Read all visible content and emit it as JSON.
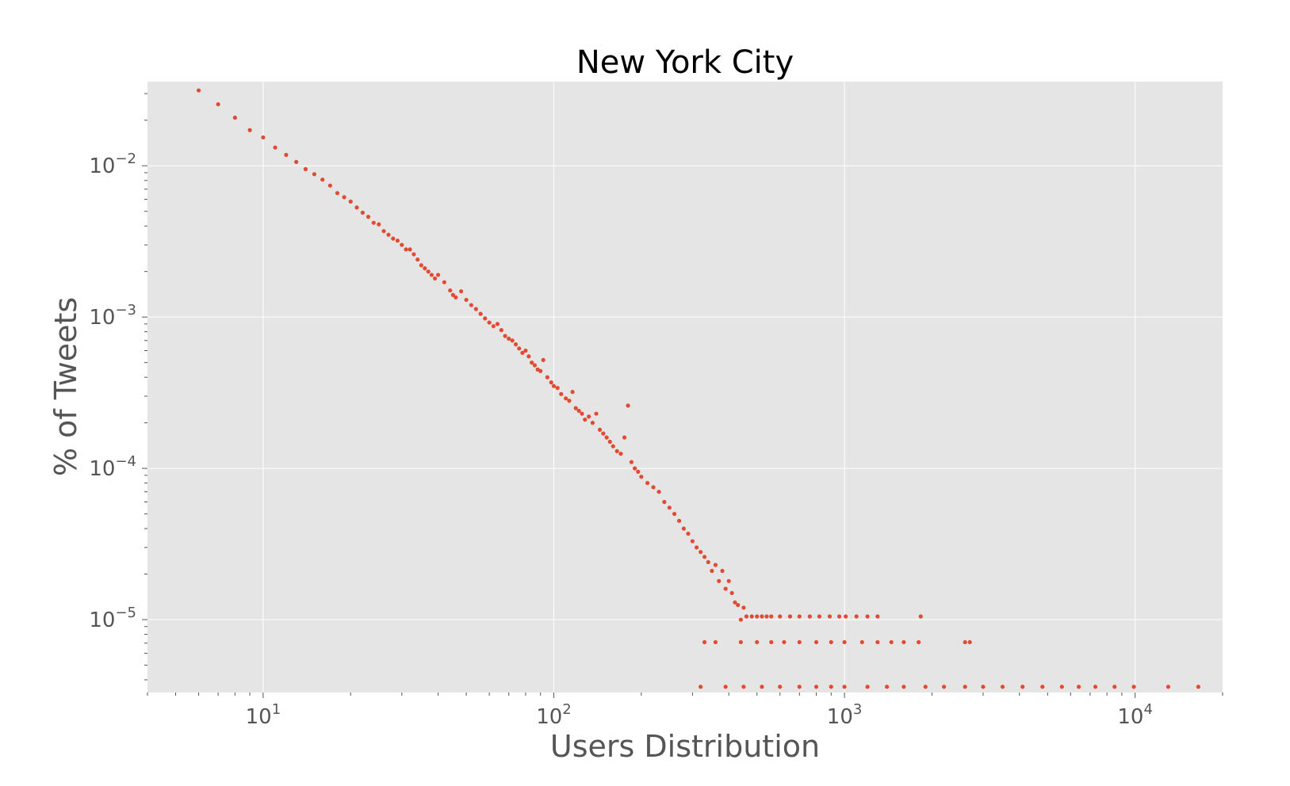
{
  "chart_data": {
    "type": "scatter",
    "title": "New York City",
    "xlabel": "Users Distribution",
    "ylabel": "% of Tweets",
    "x_scale": "log",
    "y_scale": "log",
    "xlim": [
      4,
      20000
    ],
    "ylim": [
      3.3e-06,
      0.036
    ],
    "grid": true,
    "background_color": "#e5e5e5",
    "grid_color": "#ffffff",
    "marker_color": "#e24a33",
    "x_ticks": [
      {
        "value": 10,
        "base": "10",
        "exp": "1"
      },
      {
        "value": 100,
        "base": "10",
        "exp": "2"
      },
      {
        "value": 1000,
        "base": "10",
        "exp": "3"
      },
      {
        "value": 10000,
        "base": "10",
        "exp": "4"
      }
    ],
    "y_ticks": [
      {
        "value": 0.01,
        "base": "10",
        "exp": "−2"
      },
      {
        "value": 0.001,
        "base": "10",
        "exp": "−3"
      },
      {
        "value": 0.0001,
        "base": "10",
        "exp": "−4"
      },
      {
        "value": 1e-05,
        "base": "10",
        "exp": "−5"
      }
    ],
    "points": [
      [
        6,
        0.0315
      ],
      [
        7,
        0.0255
      ],
      [
        8,
        0.0208
      ],
      [
        9,
        0.0172
      ],
      [
        10,
        0.0154
      ],
      [
        11,
        0.0132
      ],
      [
        12,
        0.0118
      ],
      [
        13,
        0.0106
      ],
      [
        14,
        0.0095
      ],
      [
        15,
        0.0088
      ],
      [
        16,
        0.0081
      ],
      [
        17,
        0.0074
      ],
      [
        18,
        0.0066
      ],
      [
        19,
        0.0062
      ],
      [
        20,
        0.0058
      ],
      [
        21,
        0.0053
      ],
      [
        22,
        0.0049
      ],
      [
        23,
        0.0046
      ],
      [
        24,
        0.0042
      ],
      [
        25,
        0.0041
      ],
      [
        26,
        0.0037
      ],
      [
        27,
        0.0035
      ],
      [
        28,
        0.0033
      ],
      [
        29,
        0.0032
      ],
      [
        30,
        0.003
      ],
      [
        31,
        0.0028
      ],
      [
        32,
        0.0028
      ],
      [
        33,
        0.0026
      ],
      [
        34,
        0.0024
      ],
      [
        35,
        0.0022
      ],
      [
        36,
        0.0021
      ],
      [
        37,
        0.002
      ],
      [
        38,
        0.0019
      ],
      [
        39,
        0.0018
      ],
      [
        40,
        0.0019
      ],
      [
        42,
        0.0017
      ],
      [
        44,
        0.0015
      ],
      [
        45,
        0.0014
      ],
      [
        46,
        0.00135
      ],
      [
        48,
        0.00148
      ],
      [
        50,
        0.0013
      ],
      [
        52,
        0.0012
      ],
      [
        54,
        0.00113
      ],
      [
        56,
        0.00105
      ],
      [
        58,
        0.00098
      ],
      [
        60,
        0.00092
      ],
      [
        62,
        0.00087
      ],
      [
        64,
        0.0009
      ],
      [
        66,
        0.00082
      ],
      [
        68,
        0.00075
      ],
      [
        70,
        0.00072
      ],
      [
        72,
        0.0007
      ],
      [
        74,
        0.00066
      ],
      [
        76,
        0.00062
      ],
      [
        78,
        0.00058
      ],
      [
        80,
        0.0006
      ],
      [
        82,
        0.00055
      ],
      [
        84,
        0.0005
      ],
      [
        86,
        0.00048
      ],
      [
        88,
        0.00045
      ],
      [
        90,
        0.00044
      ],
      [
        92,
        0.00052
      ],
      [
        95,
        0.0004
      ],
      [
        98,
        0.00037
      ],
      [
        100,
        0.00035
      ],
      [
        103,
        0.00034
      ],
      [
        106,
        0.00031
      ],
      [
        110,
        0.00029
      ],
      [
        113,
        0.00028
      ],
      [
        116,
        0.00032
      ],
      [
        119,
        0.00025
      ],
      [
        122,
        0.00024
      ],
      [
        125,
        0.00023
      ],
      [
        128,
        0.00021
      ],
      [
        132,
        0.00022
      ],
      [
        136,
        0.0002
      ],
      [
        140,
        0.00023
      ],
      [
        144,
        0.00018
      ],
      [
        148,
        0.00017
      ],
      [
        152,
        0.00016
      ],
      [
        156,
        0.00015
      ],
      [
        160,
        0.00014
      ],
      [
        165,
        0.00013
      ],
      [
        170,
        0.000125
      ],
      [
        175,
        0.00016
      ],
      [
        180,
        0.00026
      ],
      [
        185,
        0.00011
      ],
      [
        190,
        0.0001
      ],
      [
        195,
        9.5e-05
      ],
      [
        200,
        8.8e-05
      ],
      [
        210,
        8e-05
      ],
      [
        220,
        7.5e-05
      ],
      [
        230,
        7e-05
      ],
      [
        240,
        6e-05
      ],
      [
        250,
        5.5e-05
      ],
      [
        260,
        5e-05
      ],
      [
        270,
        4.5e-05
      ],
      [
        280,
        4e-05
      ],
      [
        290,
        3.7e-05
      ],
      [
        300,
        3.3e-05
      ],
      [
        310,
        3e-05
      ],
      [
        320,
        2.8e-05
      ],
      [
        330,
        2.6e-05
      ],
      [
        340,
        2.4e-05
      ],
      [
        350,
        2.1e-05
      ],
      [
        360,
        2.3e-05
      ],
      [
        370,
        1.8e-05
      ],
      [
        380,
        2.1e-05
      ],
      [
        390,
        1.6e-05
      ],
      [
        400,
        1.8e-05
      ],
      [
        410,
        1.5e-05
      ],
      [
        420,
        1.3e-05
      ],
      [
        430,
        1.25e-05
      ],
      [
        440,
        1e-05
      ],
      [
        450,
        1.2e-05
      ],
      [
        460,
        1.05e-05
      ],
      [
        480,
        1.05e-05
      ],
      [
        500,
        1.05e-05
      ],
      [
        520,
        1.05e-05
      ],
      [
        540,
        1.05e-05
      ],
      [
        560,
        1.05e-05
      ],
      [
        600,
        1.05e-05
      ],
      [
        650,
        1.05e-05
      ],
      [
        700,
        1.05e-05
      ],
      [
        760,
        1.05e-05
      ],
      [
        820,
        1.05e-05
      ],
      [
        890,
        1.05e-05
      ],
      [
        960,
        1.05e-05
      ],
      [
        1010,
        1.05e-05
      ],
      [
        1100,
        1.05e-05
      ],
      [
        1200,
        1.05e-05
      ],
      [
        1300,
        1.05e-05
      ],
      [
        1830,
        1.05e-05
      ],
      [
        330,
        7.1e-06
      ],
      [
        360,
        7.1e-06
      ],
      [
        440,
        7.1e-06
      ],
      [
        500,
        7.1e-06
      ],
      [
        560,
        7.1e-06
      ],
      [
        620,
        7.1e-06
      ],
      [
        700,
        7.1e-06
      ],
      [
        800,
        7.1e-06
      ],
      [
        900,
        7.1e-06
      ],
      [
        1000,
        7.1e-06
      ],
      [
        1150,
        7.1e-06
      ],
      [
        1300,
        7.1e-06
      ],
      [
        1450,
        7.1e-06
      ],
      [
        1600,
        7.1e-06
      ],
      [
        1800,
        7.1e-06
      ],
      [
        2600,
        7.1e-06
      ],
      [
        2700,
        7.1e-06
      ],
      [
        320,
        3.6e-06
      ],
      [
        390,
        3.6e-06
      ],
      [
        450,
        3.6e-06
      ],
      [
        520,
        3.6e-06
      ],
      [
        600,
        3.6e-06
      ],
      [
        700,
        3.6e-06
      ],
      [
        800,
        3.6e-06
      ],
      [
        900,
        3.6e-06
      ],
      [
        1000,
        3.6e-06
      ],
      [
        1200,
        3.6e-06
      ],
      [
        1400,
        3.6e-06
      ],
      [
        1600,
        3.6e-06
      ],
      [
        1900,
        3.6e-06
      ],
      [
        2200,
        3.6e-06
      ],
      [
        2600,
        3.6e-06
      ],
      [
        3000,
        3.6e-06
      ],
      [
        3500,
        3.6e-06
      ],
      [
        4100,
        3.6e-06
      ],
      [
        4800,
        3.6e-06
      ],
      [
        5600,
        3.6e-06
      ],
      [
        6400,
        3.6e-06
      ],
      [
        7300,
        3.6e-06
      ],
      [
        8500,
        3.6e-06
      ],
      [
        9900,
        3.6e-06
      ],
      [
        13000,
        3.6e-06
      ],
      [
        16500,
        3.6e-06
      ]
    ]
  }
}
